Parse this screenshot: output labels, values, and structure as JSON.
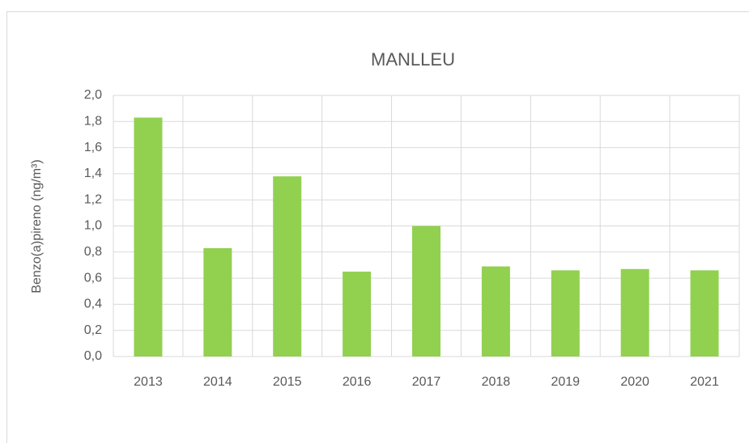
{
  "chart_data": {
    "type": "bar",
    "title": "MANLLEU",
    "y_label": "Benzo(a)pireno (ng/m³)",
    "categories": [
      "2013",
      "2014",
      "2015",
      "2016",
      "2017",
      "2018",
      "2019",
      "2020",
      "2021"
    ],
    "values": [
      1.83,
      0.83,
      1.38,
      0.65,
      1.0,
      0.69,
      0.66,
      0.67,
      0.66
    ],
    "color": "#92d050",
    "ylim": [
      0,
      2
    ],
    "yticks": [
      {
        "value": 0,
        "label": "0,0"
      },
      {
        "value": 0.2,
        "label": "0,2"
      },
      {
        "value": 0.4,
        "label": "0,4"
      },
      {
        "value": 0.6,
        "label": "0,6"
      },
      {
        "value": 0.8,
        "label": "0,8"
      },
      {
        "value": 1.0,
        "label": "1,0"
      },
      {
        "value": 1.2,
        "label": "1,2"
      },
      {
        "value": 1.4,
        "label": "1,4"
      },
      {
        "value": 1.6,
        "label": "1,6"
      },
      {
        "value": 1.8,
        "label": "1,8"
      },
      {
        "value": 2.0,
        "label": "2,0"
      }
    ],
    "grid": true
  }
}
